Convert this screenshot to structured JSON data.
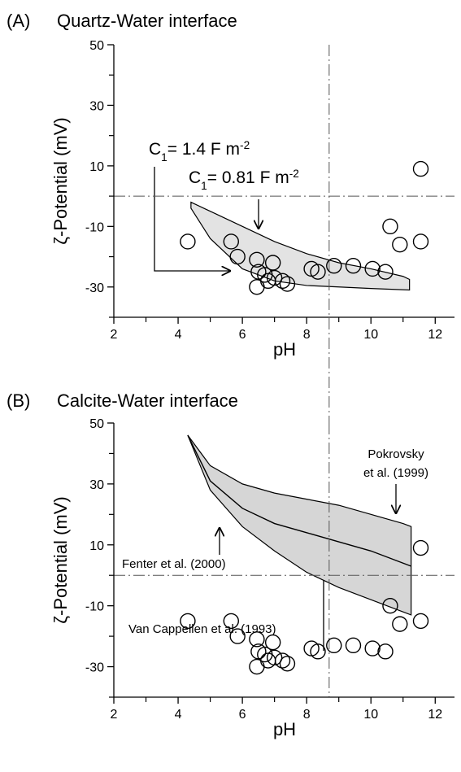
{
  "chart_data": [
    {
      "type": "scatter",
      "panel_label": "(A)",
      "title": "Quartz-Water interface",
      "xlabel": "pH",
      "ylabel": "ζ-Potential (mV)",
      "xlim": [
        2,
        12.6
      ],
      "ylim": [
        -40,
        50
      ],
      "xticks": [
        2,
        4,
        6,
        8,
        10,
        12
      ],
      "xminor": [
        3,
        5,
        7,
        9,
        11
      ],
      "yticks": [
        -30,
        -10,
        10,
        30,
        50
      ],
      "yminor": [
        -40,
        -20,
        0,
        20,
        40
      ],
      "hline": 0,
      "vline": 8.7,
      "point_color": "#000000",
      "x": [
        4.3,
        5.65,
        5.85,
        6.45,
        6.5,
        6.45,
        6.7,
        6.8,
        6.95,
        7.0,
        7.25,
        7.4,
        8.15,
        8.35,
        8.85,
        9.45,
        10.05,
        10.45,
        10.6,
        10.9,
        11.55,
        11.55
      ],
      "y": [
        -15,
        -15,
        -20,
        -21,
        -25,
        -30,
        -26,
        -28,
        -22,
        -27,
        -28,
        -29,
        -24,
        -25,
        -23,
        -23,
        -24,
        -25,
        -10,
        -16,
        9,
        -15
      ],
      "bands": [
        {
          "color": "#e3e3e3",
          "points": [
            [
              4.4,
              -2
            ],
            [
              5,
              -5
            ],
            [
              6,
              -10
            ],
            [
              7,
              -15
            ],
            [
              8,
              -19
            ],
            [
              9,
              -22
            ],
            [
              10,
              -24
            ],
            [
              11,
              -26.5
            ],
            [
              11.2,
              -27.5
            ],
            [
              11.2,
              -31
            ],
            [
              10,
              -30.5
            ],
            [
              9,
              -30
            ],
            [
              8,
              -29.5
            ],
            [
              7,
              -28
            ],
            [
              6,
              -24
            ],
            [
              5,
              -14
            ],
            [
              4.4,
              -4
            ]
          ]
        }
      ],
      "curves": [],
      "annotations": [
        {
          "parts": [
            "C",
            "1",
            "= 1.4 F m",
            "-2"
          ]
        },
        {
          "parts": [
            "C",
            "1",
            "= 0.81 F m",
            "-2"
          ]
        }
      ]
    },
    {
      "type": "scatter",
      "panel_label": "(B)",
      "title": "Calcite-Water interface",
      "xlabel": "pH",
      "ylabel": "ζ-Potential (mV)",
      "xlim": [
        2,
        12.6
      ],
      "ylim": [
        -40,
        50
      ],
      "xticks": [
        2,
        4,
        6,
        8,
        10,
        12
      ],
      "xminor": [
        3,
        5,
        7,
        9,
        11
      ],
      "yticks": [
        -30,
        -10,
        10,
        30,
        50
      ],
      "yminor": [
        -40,
        -20,
        0,
        20,
        40
      ],
      "hline": 0,
      "vline": 8.7,
      "point_color": "#000000",
      "x": [
        4.3,
        5.65,
        5.85,
        6.45,
        6.5,
        6.45,
        6.7,
        6.8,
        6.95,
        7.0,
        7.25,
        7.4,
        8.15,
        8.35,
        8.85,
        9.45,
        10.05,
        10.45,
        10.6,
        10.9,
        11.55,
        11.55
      ],
      "y": [
        -15,
        -15,
        -20,
        -21,
        -25,
        -30,
        -26,
        -28,
        -22,
        -27,
        -28,
        -29,
        -24,
        -25,
        -23,
        -23,
        -24,
        -25,
        -10,
        -16,
        9,
        -15
      ],
      "bands": [
        {
          "color": "#d6d6d6",
          "points": [
            [
              4.3,
              46
            ],
            [
              5,
              36
            ],
            [
              6,
              30
            ],
            [
              7,
              27
            ],
            [
              8,
              25
            ],
            [
              9,
              23
            ],
            [
              10,
              20
            ],
            [
              11,
              17
            ],
            [
              11.25,
              16
            ],
            [
              11.25,
              -13
            ],
            [
              11,
              -12
            ],
            [
              10,
              -8
            ],
            [
              9,
              -4
            ],
            [
              8,
              1
            ],
            [
              7,
              8
            ],
            [
              6,
              16
            ],
            [
              5,
              28
            ]
          ]
        }
      ],
      "curves": [
        {
          "points": [
            [
              4.3,
              46
            ],
            [
              5,
              31
            ],
            [
              6,
              22
            ],
            [
              7,
              17
            ],
            [
              8,
              14
            ],
            [
              9,
              11
            ],
            [
              10,
              8
            ],
            [
              11,
              4
            ],
            [
              11.25,
              3
            ]
          ]
        }
      ],
      "annotations": [
        {
          "parts": [
            "Pokrovsky"
          ]
        },
        {
          "parts": [
            "et al. (1999)"
          ]
        },
        {
          "parts": [
            "Fenter et al. (2000)"
          ]
        },
        {
          "parts": [
            "Van Cappellen et al. (1993)"
          ]
        }
      ]
    }
  ]
}
